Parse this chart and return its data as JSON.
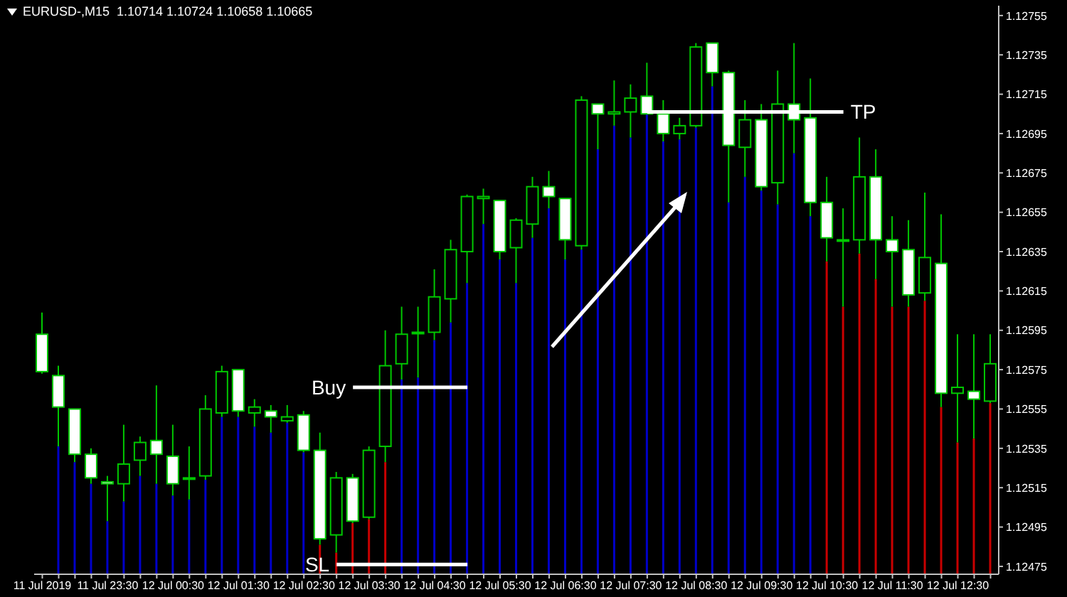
{
  "chart_data": {
    "type": "candlestick",
    "title": "EURUSD-,M15  1.10714 1.10724 1.10658 1.10665",
    "color": "#00c800",
    "categories": [
      "11 Jul 2019",
      null,
      null,
      null,
      "11 Jul 23:30",
      null,
      null,
      null,
      "12 Jul 00:30",
      null,
      null,
      null,
      "12 Jul 01:30",
      null,
      null,
      null,
      "12 Jul 02:30",
      null,
      null,
      null,
      "12 Jul 03:30",
      null,
      null,
      null,
      "12 Jul 04:30",
      null,
      null,
      null,
      "12 Jul 05:30",
      null,
      null,
      null,
      "12 Jul 06:30",
      null,
      null,
      null,
      "12 Jul 07:30",
      null,
      null,
      null,
      "12 Jul 08:30",
      null,
      null,
      null,
      "12 Jul 09:30",
      null,
      null,
      null,
      "12 Jul 10:30",
      null,
      null,
      null,
      "12 Jul 11:30",
      null,
      null,
      null,
      "12 Jul 12:30",
      null,
      null
    ],
    "ohlc": [
      [
        1.12593,
        1.12604,
        1.12573,
        1.12574
      ],
      [
        1.12572,
        1.12577,
        1.12536,
        1.12556
      ],
      [
        1.12555,
        1.12555,
        1.12528,
        1.12532
      ],
      [
        1.12532,
        1.12535,
        1.12517,
        1.1252
      ],
      [
        1.12518,
        1.12521,
        1.12498,
        1.12517
      ],
      [
        1.12517,
        1.12547,
        1.12508,
        1.12527
      ],
      [
        1.12529,
        1.12541,
        1.12521,
        1.12538
      ],
      [
        1.12539,
        1.12567,
        1.12517,
        1.12532
      ],
      [
        1.12531,
        1.12547,
        1.12511,
        1.12517
      ],
      [
        1.1252,
        1.12536,
        1.12509,
        1.1252
      ],
      [
        1.12521,
        1.12562,
        1.12519,
        1.12555
      ],
      [
        1.12553,
        1.12577,
        1.12551,
        1.12574
      ],
      [
        1.12575,
        1.12575,
        1.12551,
        1.12554
      ],
      [
        1.12553,
        1.1256,
        1.12546,
        1.12556
      ],
      [
        1.12554,
        1.12557,
        1.12543,
        1.12551
      ],
      [
        1.12549,
        1.12557,
        1.12548,
        1.12551
      ],
      [
        1.12552,
        1.12554,
        1.12533,
        1.12534
      ],
      [
        1.12534,
        1.12543,
        1.12486,
        1.12489
      ],
      [
        1.12491,
        1.12523,
        1.12482,
        1.1252
      ],
      [
        1.1252,
        1.12522,
        1.12497,
        1.12498
      ],
      [
        1.125,
        1.12536,
        1.12499,
        1.12534
      ],
      [
        1.12536,
        1.12595,
        1.12528,
        1.12577
      ],
      [
        1.12578,
        1.12607,
        1.1257,
        1.12593
      ],
      [
        1.12594,
        1.12607,
        1.12571,
        1.12594
      ],
      [
        1.12594,
        1.12626,
        1.1259,
        1.12612
      ],
      [
        1.12611,
        1.12641,
        1.12599,
        1.12636
      ],
      [
        1.12635,
        1.12664,
        1.12619,
        1.12663
      ],
      [
        1.12662,
        1.12667,
        1.12649,
        1.12663
      ],
      [
        1.12661,
        1.12661,
        1.12631,
        1.12635
      ],
      [
        1.12637,
        1.12652,
        1.12619,
        1.12651
      ],
      [
        1.12649,
        1.12673,
        1.12642,
        1.12668
      ],
      [
        1.12668,
        1.12676,
        1.12657,
        1.12663
      ],
      [
        1.12662,
        1.12662,
        1.12631,
        1.12641
      ],
      [
        1.12638,
        1.12714,
        1.12636,
        1.12712
      ],
      [
        1.1271,
        1.1271,
        1.12687,
        1.12705
      ],
      [
        1.12705,
        1.12722,
        1.12699,
        1.12706
      ],
      [
        1.12706,
        1.1272,
        1.12693,
        1.12713
      ],
      [
        1.12714,
        1.12731,
        1.12705,
        1.12705
      ],
      [
        1.12705,
        1.12712,
        1.12691,
        1.12695
      ],
      [
        1.12695,
        1.12703,
        1.12692,
        1.12699
      ],
      [
        1.12699,
        1.12741,
        1.12698,
        1.12739
      ],
      [
        1.12741,
        1.12741,
        1.12719,
        1.12726
      ],
      [
        1.12726,
        1.12727,
        1.1266,
        1.12689
      ],
      [
        1.12688,
        1.12712,
        1.12673,
        1.12702
      ],
      [
        1.12702,
        1.1271,
        1.12666,
        1.12668
      ],
      [
        1.1267,
        1.12727,
        1.12659,
        1.1271
      ],
      [
        1.1271,
        1.12741,
        1.12685,
        1.12702
      ],
      [
        1.12703,
        1.12723,
        1.12653,
        1.1266
      ],
      [
        1.1266,
        1.12673,
        1.1263,
        1.12642
      ],
      [
        1.12641,
        1.12657,
        1.12607,
        1.12641
      ],
      [
        1.12641,
        1.12693,
        1.12634,
        1.12673
      ],
      [
        1.12673,
        1.12687,
        1.12621,
        1.12641
      ],
      [
        1.12641,
        1.12653,
        1.12607,
        1.12635
      ],
      [
        1.12636,
        1.12651,
        1.12607,
        1.12613
      ],
      [
        1.12614,
        1.12665,
        1.1261,
        1.12632
      ],
      [
        1.12629,
        1.12654,
        1.12556,
        1.12563
      ],
      [
        1.12563,
        1.12593,
        1.12538,
        1.12566
      ],
      [
        1.12564,
        1.12593,
        1.1254,
        1.1256
      ],
      [
        1.12559,
        1.12593,
        1.12558,
        1.12578
      ]
    ],
    "series": [
      {
        "type": "bar",
        "values": [
          null,
          1.12536,
          1.12528,
          1.12517,
          1.12498,
          1.12508,
          1.12521,
          1.12517,
          1.12511,
          1.12509,
          1.12519,
          1.12551,
          1.12551,
          1.12546,
          1.12543,
          1.12548,
          1.12533,
          1.12486,
          1.12482,
          1.12497,
          1.12499,
          1.12528,
          1.1257,
          1.12571,
          1.1259,
          1.12599,
          1.12619,
          1.12649,
          1.12631,
          1.12619,
          1.12642,
          1.12657,
          1.12631,
          1.12636,
          1.12687,
          1.12699,
          1.12693,
          1.12705,
          1.12691,
          1.12692,
          1.12698,
          1.12719,
          1.1266,
          1.12673,
          1.12666,
          1.12659,
          1.12685,
          1.12653,
          1.1263,
          1.12607,
          1.12634,
          1.12621,
          1.12607,
          1.12607,
          1.1261,
          1.12556,
          1.12538,
          1.1254,
          1.12558
        ],
        "colors": [
          null,
          "#0000c8",
          "#0000c8",
          "#0000c8",
          "#0000c8",
          "#0000c8",
          "#0000c8",
          "#0000c8",
          "#0000c8",
          "#0000c8",
          "#0000c8",
          "#0000c8",
          "#0000c8",
          "#0000c8",
          "#0000c8",
          "#0000c8",
          "#0000c8",
          "#c80000",
          "#c80000",
          "#c80000",
          "#c80000",
          "#c80000",
          "#0000c8",
          "#0000c8",
          "#0000c8",
          "#0000c8",
          "#0000c8",
          "#0000c8",
          "#0000c8",
          "#0000c8",
          "#0000c8",
          "#0000c8",
          "#0000c8",
          "#0000c8",
          "#0000c8",
          "#0000c8",
          "#0000c8",
          "#0000c8",
          "#0000c8",
          "#0000c8",
          "#0000c8",
          "#0000c8",
          "#0000c8",
          "#0000c8",
          "#0000c8",
          "#0000c8",
          "#0000c8",
          "#0000c8",
          "#c80000",
          "#c80000",
          "#c80000",
          "#c80000",
          "#c80000",
          "#c80000",
          "#c80000",
          "#c80000",
          "#c80000",
          "#c80000",
          "#c80000"
        ]
      }
    ],
    "ylim": [
      1.12471,
      1.1276
    ],
    "yticks": [
      1.12475,
      1.12495,
      1.12515,
      1.12535,
      1.12555,
      1.12575,
      1.12595,
      1.12615,
      1.12635,
      1.12655,
      1.12675,
      1.12695,
      1.12715,
      1.12735,
      1.12755
    ],
    "ref_lines": [
      {
        "axis": "y",
        "value": 1.12566,
        "label": "Buy",
        "color": "#ffffff"
      },
      {
        "axis": "y",
        "value": 1.12476,
        "label": "SL",
        "color": "#ffffff"
      },
      {
        "axis": "y",
        "value": 1.12706,
        "label": "TP",
        "color": "#ffffff"
      }
    ]
  }
}
